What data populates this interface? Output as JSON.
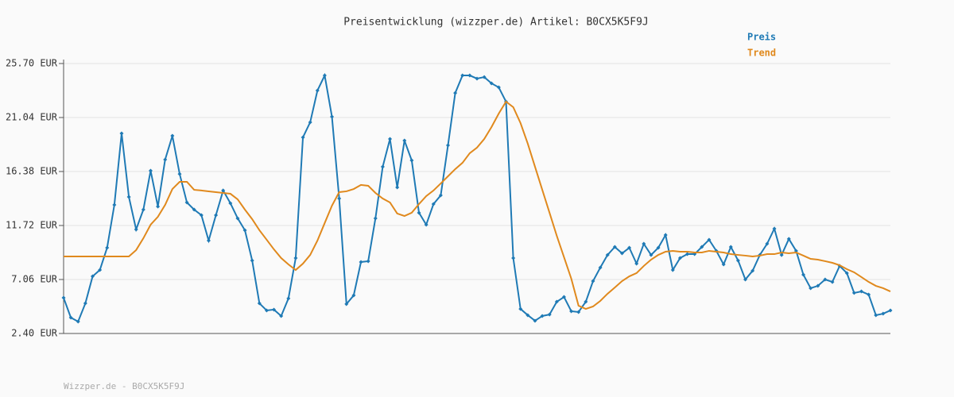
{
  "chart_data": {
    "type": "line",
    "title": "Preisentwicklung (wizzper.de) Artikel: B0CX5K5F9J",
    "footer": "Wizzper.de - B0CX5K5F9J",
    "ylim": [
      2.4,
      25.7
    ],
    "yticks": [
      {
        "value": 2.4,
        "label": "2.40 EUR"
      },
      {
        "value": 7.06,
        "label": "7.06 EUR"
      },
      {
        "value": 11.72,
        "label": "11.72 EUR"
      },
      {
        "value": 16.38,
        "label": "16.38 EUR"
      },
      {
        "value": 21.04,
        "label": "21.04 EUR"
      },
      {
        "value": 25.7,
        "label": "25.70 EUR"
      }
    ],
    "grid": true,
    "legend": "top-right",
    "series": [
      {
        "name": "Preis",
        "color": "#1f7ab5",
        "markers": true,
        "values": [
          5.48,
          3.77,
          3.43,
          5.0,
          7.33,
          7.88,
          9.8,
          13.5,
          19.67,
          14.19,
          11.38,
          13.09,
          16.45,
          13.36,
          17.41,
          19.46,
          16.17,
          13.71,
          13.09,
          12.61,
          10.42,
          12.61,
          14.74,
          13.64,
          12.34,
          11.31,
          8.7,
          5.0,
          4.39,
          4.46,
          3.91,
          5.42,
          8.91,
          19.33,
          20.63,
          23.37,
          24.67,
          21.11,
          14.05,
          4.94,
          5.69,
          8.57,
          8.64,
          12.34,
          16.79,
          19.19,
          15.01,
          19.05,
          17.34,
          12.82,
          11.79,
          13.57,
          14.32,
          18.64,
          23.16,
          24.67,
          24.67,
          24.4,
          24.53,
          23.99,
          23.64,
          22.41,
          8.91,
          4.52,
          3.98,
          3.5,
          3.91,
          4.04,
          5.14,
          5.55,
          4.32,
          4.25,
          5.14,
          6.92,
          8.09,
          9.18,
          9.87,
          9.32,
          9.8,
          8.43,
          10.14,
          9.18,
          9.8,
          10.9,
          7.88,
          8.91,
          9.25,
          9.25,
          9.87,
          10.49,
          9.53,
          8.36,
          9.87,
          8.7,
          7.06,
          7.81,
          9.18,
          10.14,
          11.45,
          9.18,
          10.56,
          9.53,
          7.47,
          6.31,
          6.51,
          7.06,
          6.85,
          8.23,
          7.61,
          5.9,
          6.03,
          5.76,
          3.98,
          4.11,
          4.39
        ]
      },
      {
        "name": "Trend",
        "color": "#e0891d",
        "markers": false,
        "values": [
          9.05,
          9.05,
          9.05,
          9.05,
          9.05,
          9.05,
          9.05,
          9.05,
          9.05,
          9.05,
          9.6,
          10.62,
          11.79,
          12.47,
          13.5,
          14.87,
          15.49,
          15.49,
          14.8,
          14.74,
          14.67,
          14.6,
          14.53,
          14.46,
          13.98,
          13.09,
          12.27,
          11.31,
          10.49,
          9.66,
          8.91,
          8.36,
          7.88,
          8.43,
          9.18,
          10.42,
          11.93,
          13.43,
          14.6,
          14.67,
          14.87,
          15.22,
          15.15,
          14.53,
          14.05,
          13.71,
          12.75,
          12.54,
          12.82,
          13.57,
          14.26,
          14.74,
          15.35,
          15.97,
          16.59,
          17.13,
          17.96,
          18.44,
          19.19,
          20.22,
          21.38,
          22.41,
          21.93,
          20.56,
          18.78,
          16.79,
          14.8,
          12.82,
          10.83,
          8.98,
          7.13,
          4.8,
          4.52,
          4.73,
          5.21,
          5.83,
          6.37,
          6.92,
          7.33,
          7.61,
          8.23,
          8.77,
          9.18,
          9.46,
          9.53,
          9.46,
          9.46,
          9.39,
          9.39,
          9.53,
          9.46,
          9.39,
          9.25,
          9.18,
          9.12,
          9.05,
          9.12,
          9.25,
          9.25,
          9.39,
          9.32,
          9.39,
          9.12,
          8.84,
          8.77,
          8.64,
          8.5,
          8.29,
          7.95,
          7.68,
          7.27,
          6.85,
          6.51,
          6.31,
          6.03
        ]
      }
    ]
  }
}
